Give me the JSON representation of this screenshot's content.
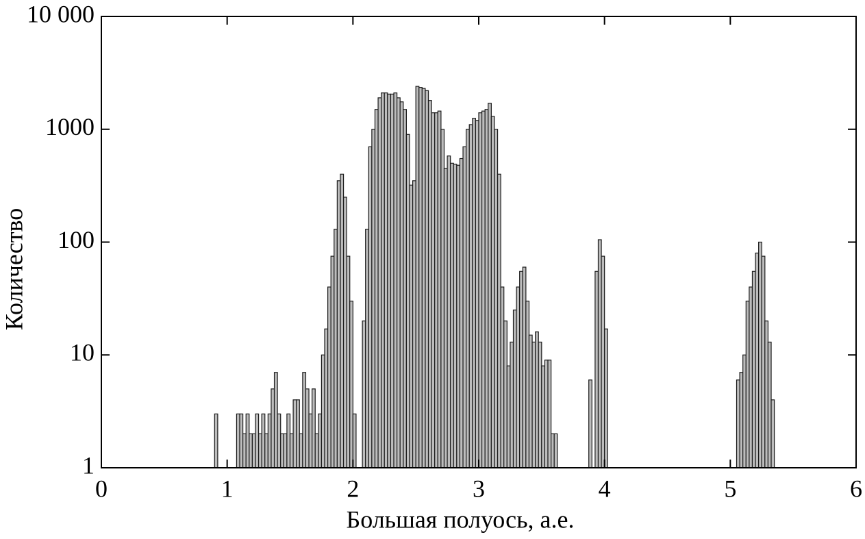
{
  "chart_data": {
    "type": "histogram",
    "x_label": "Большая полуось, а.е.",
    "y_label": "Количество",
    "bins": [
      0.9,
      0.925,
      0.95,
      0.975,
      1,
      1.025,
      1.05,
      1.075,
      1.1,
      1.125,
      1.15,
      1.175,
      1.2,
      1.225,
      1.25,
      1.275,
      1.3,
      1.325,
      1.35,
      1.375,
      1.4,
      1.425,
      1.45,
      1.475,
      1.5,
      1.525,
      1.55,
      1.575,
      1.6,
      1.625,
      1.65,
      1.675,
      1.7,
      1.725,
      1.75,
      1.775,
      1.8,
      1.825,
      1.85,
      1.875,
      1.9,
      1.925,
      1.95,
      1.975,
      2,
      2.025,
      2.05,
      2.075,
      2.1,
      2.125,
      2.15,
      2.175,
      2.2,
      2.225,
      2.25,
      2.275,
      2.3,
      2.325,
      2.35,
      2.375,
      2.4,
      2.425,
      2.45,
      2.475,
      2.5,
      2.525,
      2.55,
      2.575,
      2.6,
      2.625,
      2.65,
      2.675,
      2.7,
      2.725,
      2.75,
      2.775,
      2.8,
      2.825,
      2.85,
      2.875,
      2.9,
      2.925,
      2.95,
      2.975,
      3,
      3.025,
      3.05,
      3.075,
      3.1,
      3.125,
      3.15,
      3.175,
      3.2,
      3.225,
      3.25,
      3.275,
      3.3,
      3.325,
      3.35,
      3.375,
      3.4,
      3.425,
      3.45,
      3.475,
      3.5,
      3.525,
      3.55,
      3.575,
      3.6,
      3.625,
      3.65,
      3.675,
      3.7,
      3.725,
      3.75,
      3.775,
      3.8,
      3.825,
      3.85,
      3.875,
      3.9,
      3.925,
      3.95,
      3.975,
      4,
      4.025,
      4.05,
      4.075,
      4.1,
      4.125,
      4.15,
      4.175,
      4.2,
      4.225,
      4.25,
      4.275,
      4.3,
      4.325,
      4.35,
      4.375,
      4.4,
      4.425,
      4.45,
      4.475,
      4.5,
      4.525,
      4.55,
      4.575,
      4.6,
      4.625,
      4.65,
      4.675,
      4.7,
      4.725,
      4.75,
      4.775,
      4.8,
      4.825,
      4.85,
      4.875,
      4.9,
      4.925,
      4.95,
      4.975,
      5,
      5.025,
      5.05,
      5.075,
      5.1,
      5.125,
      5.15,
      5.175,
      5.2,
      5.225,
      5.25,
      5.275,
      5.3,
      5.325,
      5.35
    ],
    "counts": [
      3,
      0,
      0,
      0,
      0,
      0,
      0,
      3,
      3,
      2,
      3,
      2,
      2,
      3,
      2,
      3,
      2,
      3,
      5,
      7,
      3,
      2,
      2,
      3,
      2,
      4,
      4,
      2,
      7,
      5,
      3,
      5,
      2,
      3,
      10,
      17,
      40,
      75,
      130,
      350,
      400,
      250,
      75,
      30,
      3,
      0,
      0,
      20,
      130,
      700,
      1000,
      1500,
      1900,
      2100,
      2100,
      2050,
      2050,
      2100,
      1900,
      1750,
      1500,
      900,
      320,
      350,
      2400,
      2350,
      2300,
      2200,
      1800,
      1400,
      1400,
      1450,
      1000,
      450,
      580,
      500,
      490,
      480,
      550,
      700,
      1000,
      1100,
      1250,
      1200,
      1400,
      1450,
      1500,
      1700,
      1300,
      1000,
      400,
      40,
      20,
      8,
      13,
      25,
      40,
      55,
      60,
      30,
      15,
      13,
      16,
      13,
      8,
      9,
      9,
      2,
      2,
      0,
      0,
      0,
      0,
      0,
      0,
      0,
      0,
      0,
      0,
      6,
      0,
      55,
      105,
      75,
      17,
      0,
      0,
      0,
      0,
      0,
      0,
      0,
      0,
      0,
      0,
      0,
      0,
      0,
      0,
      0,
      0,
      0,
      0,
      0,
      0,
      0,
      0,
      0,
      0,
      0,
      0,
      0,
      0,
      0,
      0,
      0,
      0,
      0,
      0,
      0,
      0,
      0,
      0,
      0,
      0,
      0,
      6,
      7,
      10,
      30,
      40,
      55,
      80,
      100,
      75,
      20,
      13,
      4
    ],
    "color": "#bdbdbd",
    "xlim": [
      0,
      6
    ],
    "xticks": [
      0,
      1,
      2,
      3,
      4,
      5,
      6
    ],
    "ylim": [
      1,
      10000
    ],
    "yticks": [
      1,
      10,
      100,
      1000,
      {
        "value": 10000,
        "label": "10 000"
      }
    ],
    "y_scale": "log"
  }
}
